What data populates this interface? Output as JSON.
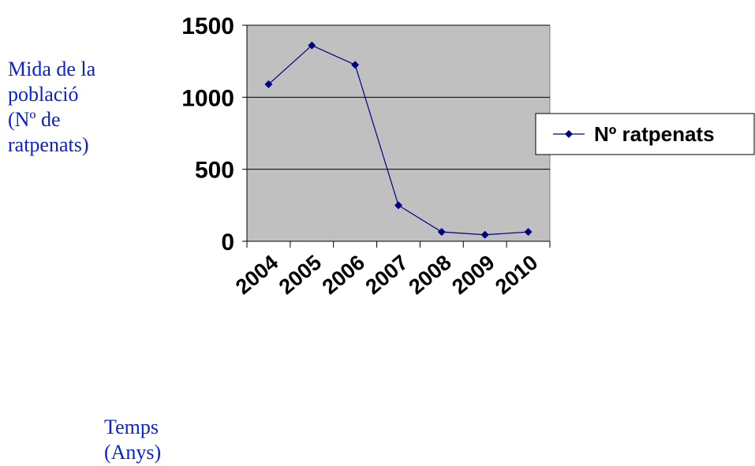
{
  "chart_data": {
    "type": "line",
    "title": "",
    "xlabel_lines": [
      "Temps",
      "(Anys)"
    ],
    "ylabel_lines": [
      "Mida de la",
      "població",
      "(Nº de",
      "ratpenats)"
    ],
    "categories": [
      "2004",
      "2005",
      "2006",
      "2007",
      "2008",
      "2009",
      "2010"
    ],
    "series": [
      {
        "name": "Nº ratpenats",
        "values": [
          1090,
          1360,
          1225,
          250,
          65,
          45,
          65
        ],
        "color": "#000080"
      }
    ],
    "ylim": [
      0,
      1500
    ],
    "yticks": [
      "0",
      "500",
      "1000",
      "1500"
    ],
    "ytick_values": [
      0,
      500,
      1000,
      1500
    ],
    "grid": true,
    "plot_background": "#c0c0c0",
    "legend_position": "right"
  }
}
